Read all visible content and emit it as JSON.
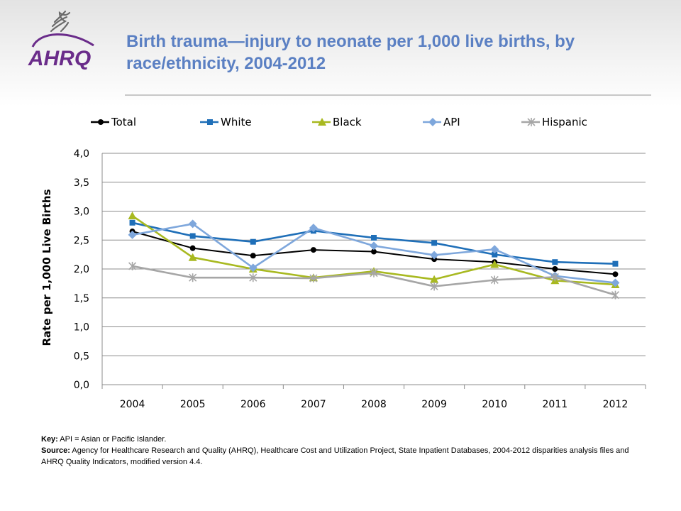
{
  "header": {
    "title": "Birth trauma—injury to neonate per 1,000 live births, by race/ethnicity, 2004-2012",
    "logo_text": "AHRQ"
  },
  "colors": {
    "title": "#5b80c3",
    "logo_purple": "#6a2c8a",
    "total": "#000000",
    "white": "#1f6fb8",
    "black": "#a8b920",
    "api": "#7ea7dc",
    "hispanic": "#a6a6a6"
  },
  "chart_data": {
    "type": "line",
    "title": "",
    "xlabel": "",
    "ylabel": "Rate per 1,000 Live Births",
    "categories": [
      "2004",
      "2005",
      "2006",
      "2007",
      "2008",
      "2009",
      "2010",
      "2011",
      "2012"
    ],
    "ylim": [
      0,
      4
    ],
    "yticks": [
      "0,0",
      "0,5",
      "1,0",
      "1,5",
      "2,0",
      "2,5",
      "3,0",
      "3,5",
      "4,0"
    ],
    "grid": true,
    "legend_position": "top",
    "series": [
      {
        "name": "Total",
        "marker": "circle",
        "color": "#000000",
        "values": [
          2.65,
          2.36,
          2.23,
          2.33,
          2.3,
          2.17,
          2.12,
          2.0,
          1.91
        ]
      },
      {
        "name": "White",
        "marker": "square",
        "color": "#1f6fb8",
        "values": [
          2.8,
          2.57,
          2.47,
          2.66,
          2.54,
          2.45,
          2.25,
          2.12,
          2.09
        ]
      },
      {
        "name": "Black",
        "marker": "triangle",
        "color": "#a8b920",
        "values": [
          2.92,
          2.2,
          2.0,
          1.85,
          1.96,
          1.82,
          2.08,
          1.8,
          1.73
        ]
      },
      {
        "name": "API",
        "marker": "diamond",
        "color": "#7ea7dc",
        "values": [
          2.59,
          2.78,
          2.02,
          2.71,
          2.4,
          2.24,
          2.34,
          1.88,
          1.76
        ]
      },
      {
        "name": "Hispanic",
        "marker": "star",
        "color": "#a6a6a6",
        "values": [
          2.05,
          1.85,
          1.85,
          1.84,
          1.93,
          1.7,
          1.81,
          1.86,
          1.55
        ]
      }
    ]
  },
  "notes": {
    "key_label": "Key:",
    "key_text": " API = Asian or Pacific Islander.",
    "source_label": "Source:",
    "source_text": " Agency for Healthcare Research and Quality (AHRQ), Healthcare Cost and Utilization Project, State Inpatient Databases, 2004-2012 disparities analysis files and AHRQ Quality Indicators, modified version 4.4."
  }
}
